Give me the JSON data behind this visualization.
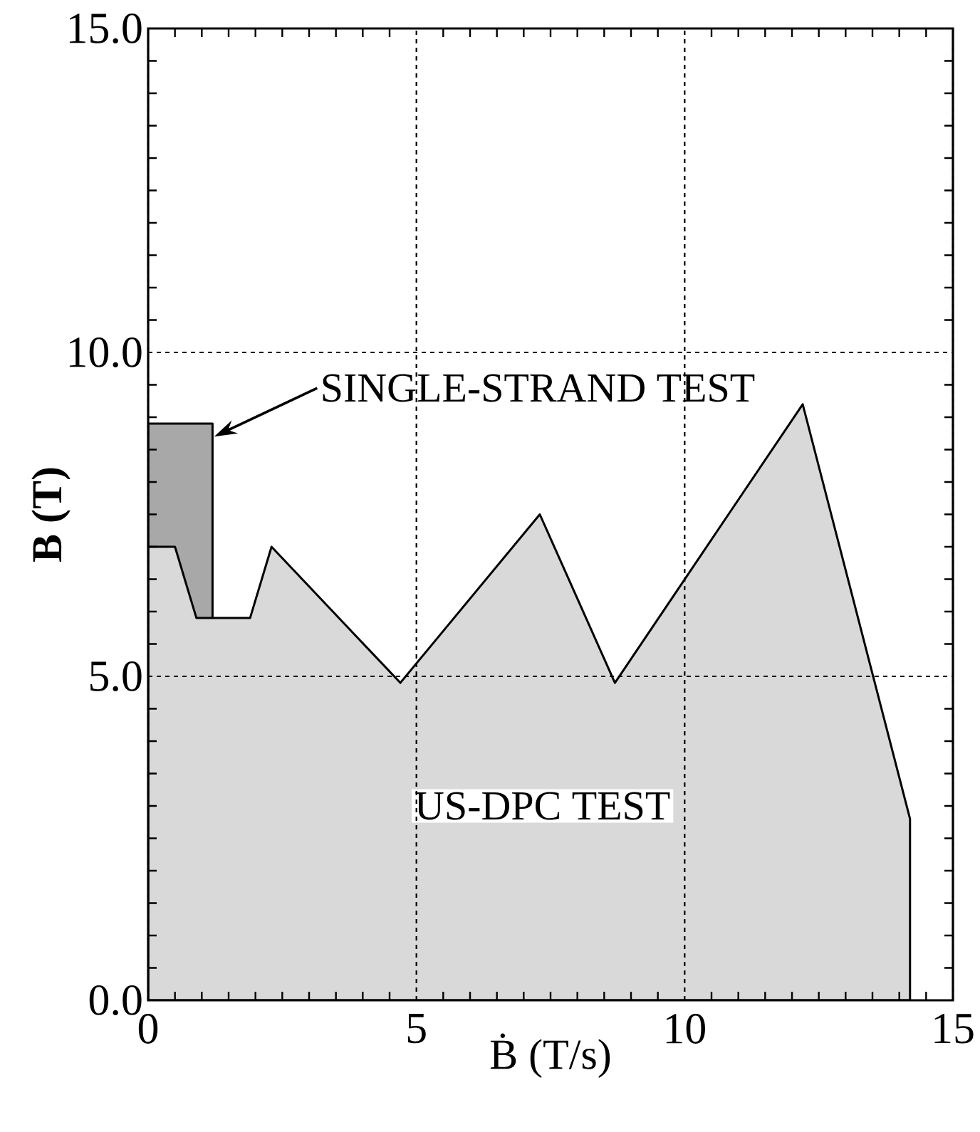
{
  "chart_data": {
    "type": "area",
    "xlabel": "Ḃ (T/s)",
    "ylabel": "B (T)",
    "xlim": [
      0,
      15
    ],
    "ylim": [
      0,
      15
    ],
    "xticks": [
      0,
      5,
      10,
      15
    ],
    "yticks": [
      {
        "value": 0,
        "label": "0.0"
      },
      {
        "value": 5,
        "label": "5.0"
      },
      {
        "value": 10,
        "label": "10.0"
      },
      {
        "value": 15,
        "label": "15.0"
      }
    ],
    "grid": true,
    "series": [
      {
        "color": "#a8a8a8",
        "x": [
          0,
          1.2
        ],
        "values": [
          8.9,
          8.9
        ]
      },
      {
        "color": "#d9d9d9",
        "x": [
          0,
          0.5,
          0.9,
          1.9,
          2.3,
          4.7,
          7.3,
          8.7,
          12.2,
          14.2
        ],
        "values": [
          7.0,
          7.0,
          5.9,
          5.9,
          7.0,
          4.9,
          7.5,
          4.9,
          9.2,
          2.8
        ]
      }
    ],
    "annotations": [
      "SINGLE-STRAND TEST",
      "US-DPC TEST"
    ]
  }
}
